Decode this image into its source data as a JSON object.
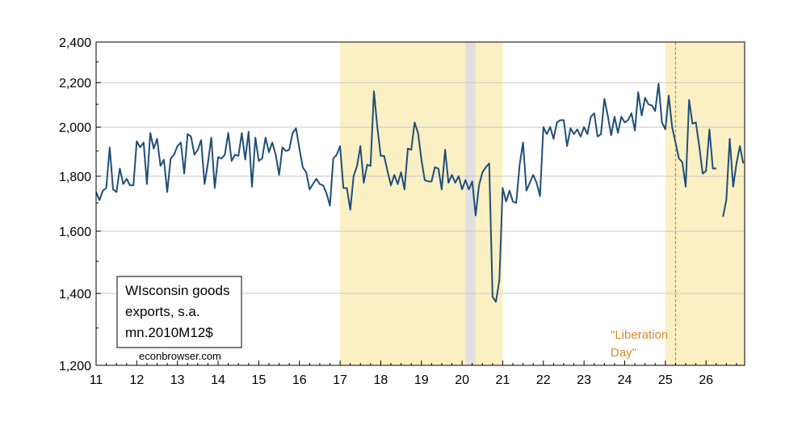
{
  "chart_data": {
    "type": "line",
    "title": "",
    "xlabel": "",
    "ylabel": "",
    "y_scale": "log",
    "ylim": [
      1200,
      2400
    ],
    "xlim": [
      2011.0,
      2026.95
    ],
    "y_ticks": [
      1200,
      1400,
      1600,
      1800,
      2000,
      2200,
      2400
    ],
    "y_tick_labels": [
      "1,200",
      "1,400",
      "1,600",
      "1,800",
      "2,000",
      "2,200",
      "2,400"
    ],
    "x_ticks": [
      2011,
      2012,
      2013,
      2014,
      2015,
      2016,
      2017,
      2018,
      2019,
      2020,
      2021,
      2022,
      2023,
      2024,
      2025,
      2026
    ],
    "x_tick_labels": [
      "11",
      "12",
      "13",
      "14",
      "15",
      "16",
      "17",
      "18",
      "19",
      "20",
      "21",
      "22",
      "23",
      "24",
      "25",
      "26"
    ],
    "grid": true,
    "legend": {
      "placement": "bottom-left",
      "lines": [
        "WIsconsin goods",
        "exports, s.a.",
        "mn.2010M12$"
      ]
    },
    "credit": "econbrowser.com",
    "shaded_periods": [
      {
        "start": 2017.0,
        "end": 2021.0,
        "color": "#fbf0c3"
      },
      {
        "start": 2020.083,
        "end": 2020.333,
        "color": "#e0e0e0"
      },
      {
        "start": 2025.0,
        "end": 2026.95,
        "color": "#fbf0c3"
      }
    ],
    "vline": {
      "x": 2025.25,
      "color": "#d98a2b"
    },
    "annotation": {
      "lines": [
        "\"Liberation",
        "Day\""
      ],
      "color": "#d98a2b"
    },
    "series": [
      {
        "color": "#1f4e79",
        "points": [
          [
            2011.0,
            1740
          ],
          [
            2011.083,
            1710
          ],
          [
            2011.167,
            1745
          ],
          [
            2011.25,
            1755
          ],
          [
            2011.333,
            1915
          ],
          [
            2011.417,
            1750
          ],
          [
            2011.5,
            1740
          ],
          [
            2011.583,
            1830
          ],
          [
            2011.667,
            1770
          ],
          [
            2011.75,
            1790
          ],
          [
            2011.833,
            1765
          ],
          [
            2011.917,
            1765
          ],
          [
            2012.0,
            1940
          ],
          [
            2012.083,
            1915
          ],
          [
            2012.167,
            1935
          ],
          [
            2012.25,
            1770
          ],
          [
            2012.333,
            1975
          ],
          [
            2012.417,
            1910
          ],
          [
            2012.5,
            1950
          ],
          [
            2012.583,
            1840
          ],
          [
            2012.667,
            1865
          ],
          [
            2012.75,
            1740
          ],
          [
            2012.833,
            1870
          ],
          [
            2012.917,
            1885
          ],
          [
            2013.0,
            1920
          ],
          [
            2013.083,
            1935
          ],
          [
            2013.167,
            1810
          ],
          [
            2013.25,
            1970
          ],
          [
            2013.333,
            1960
          ],
          [
            2013.417,
            1885
          ],
          [
            2013.5,
            1905
          ],
          [
            2013.583,
            1945
          ],
          [
            2013.667,
            1770
          ],
          [
            2013.75,
            1850
          ],
          [
            2013.833,
            1955
          ],
          [
            2013.917,
            1755
          ],
          [
            2014.0,
            1875
          ],
          [
            2014.083,
            1870
          ],
          [
            2014.167,
            1885
          ],
          [
            2014.25,
            1975
          ],
          [
            2014.333,
            1860
          ],
          [
            2014.417,
            1885
          ],
          [
            2014.5,
            1880
          ],
          [
            2014.583,
            1975
          ],
          [
            2014.667,
            1865
          ],
          [
            2014.75,
            1980
          ],
          [
            2014.833,
            1760
          ],
          [
            2014.917,
            1955
          ],
          [
            2015.0,
            1860
          ],
          [
            2015.083,
            1870
          ],
          [
            2015.167,
            1955
          ],
          [
            2015.25,
            1895
          ],
          [
            2015.333,
            1935
          ],
          [
            2015.417,
            1885
          ],
          [
            2015.5,
            1805
          ],
          [
            2015.583,
            1915
          ],
          [
            2015.667,
            1900
          ],
          [
            2015.75,
            1905
          ],
          [
            2015.833,
            1975
          ],
          [
            2015.917,
            1995
          ],
          [
            2016.0,
            1910
          ],
          [
            2016.083,
            1835
          ],
          [
            2016.167,
            1815
          ],
          [
            2016.25,
            1750
          ],
          [
            2016.333,
            1770
          ],
          [
            2016.417,
            1790
          ],
          [
            2016.5,
            1770
          ],
          [
            2016.583,
            1765
          ],
          [
            2016.667,
            1735
          ],
          [
            2016.75,
            1690
          ],
          [
            2016.833,
            1870
          ],
          [
            2016.917,
            1885
          ],
          [
            2017.0,
            1920
          ],
          [
            2017.083,
            1755
          ],
          [
            2017.167,
            1755
          ],
          [
            2017.25,
            1675
          ],
          [
            2017.333,
            1800
          ],
          [
            2017.417,
            1840
          ],
          [
            2017.5,
            1920
          ],
          [
            2017.583,
            1775
          ],
          [
            2017.667,
            1845
          ],
          [
            2017.75,
            1840
          ],
          [
            2017.833,
            2160
          ],
          [
            2017.917,
            2000
          ],
          [
            2018.0,
            1880
          ],
          [
            2018.083,
            1880
          ],
          [
            2018.167,
            1820
          ],
          [
            2018.25,
            1765
          ],
          [
            2018.333,
            1805
          ],
          [
            2018.417,
            1770
          ],
          [
            2018.5,
            1815
          ],
          [
            2018.583,
            1750
          ],
          [
            2018.667,
            1910
          ],
          [
            2018.75,
            1905
          ],
          [
            2018.833,
            2020
          ],
          [
            2018.917,
            1975
          ],
          [
            2019.0,
            1865
          ],
          [
            2019.083,
            1785
          ],
          [
            2019.167,
            1780
          ],
          [
            2019.25,
            1780
          ],
          [
            2019.333,
            1835
          ],
          [
            2019.417,
            1830
          ],
          [
            2019.5,
            1750
          ],
          [
            2019.583,
            1905
          ],
          [
            2019.667,
            1775
          ],
          [
            2019.75,
            1805
          ],
          [
            2019.833,
            1775
          ],
          [
            2019.917,
            1800
          ],
          [
            2020.0,
            1750
          ],
          [
            2020.083,
            1785
          ],
          [
            2020.167,
            1750
          ],
          [
            2020.25,
            1780
          ],
          [
            2020.333,
            1655
          ],
          [
            2020.417,
            1765
          ],
          [
            2020.5,
            1815
          ],
          [
            2020.583,
            1835
          ],
          [
            2020.667,
            1850
          ],
          [
            2020.75,
            1390
          ],
          [
            2020.833,
            1375
          ],
          [
            2020.917,
            1440
          ],
          [
            2021.0,
            1755
          ],
          [
            2021.083,
            1705
          ],
          [
            2021.167,
            1745
          ],
          [
            2021.25,
            1705
          ],
          [
            2021.333,
            1700
          ],
          [
            2021.417,
            1845
          ],
          [
            2021.5,
            1935
          ],
          [
            2021.583,
            1745
          ],
          [
            2021.667,
            1775
          ],
          [
            2021.75,
            1805
          ],
          [
            2021.833,
            1775
          ],
          [
            2021.917,
            1725
          ],
          [
            2022.0,
            2000
          ],
          [
            2022.083,
            1970
          ],
          [
            2022.167,
            2000
          ],
          [
            2022.25,
            1950
          ],
          [
            2022.333,
            2020
          ],
          [
            2022.417,
            2030
          ],
          [
            2022.5,
            2030
          ],
          [
            2022.583,
            1920
          ],
          [
            2022.667,
            1995
          ],
          [
            2022.75,
            1970
          ],
          [
            2022.833,
            1990
          ],
          [
            2022.917,
            1960
          ],
          [
            2023.0,
            2000
          ],
          [
            2023.083,
            1970
          ],
          [
            2023.167,
            2045
          ],
          [
            2023.25,
            2060
          ],
          [
            2023.333,
            1960
          ],
          [
            2023.417,
            1970
          ],
          [
            2023.5,
            2125
          ],
          [
            2023.583,
            2050
          ],
          [
            2023.667,
            1965
          ],
          [
            2023.75,
            2045
          ],
          [
            2023.833,
            1975
          ],
          [
            2023.917,
            2045
          ],
          [
            2024.0,
            2020
          ],
          [
            2024.083,
            2030
          ],
          [
            2024.167,
            2060
          ],
          [
            2024.25,
            1985
          ],
          [
            2024.333,
            2155
          ],
          [
            2024.417,
            2050
          ],
          [
            2024.5,
            2130
          ],
          [
            2024.583,
            2100
          ],
          [
            2024.667,
            2095
          ],
          [
            2024.75,
            2070
          ],
          [
            2024.833,
            2195
          ],
          [
            2024.917,
            2020
          ],
          [
            2025.0,
            1990
          ],
          [
            2025.083,
            2140
          ],
          [
            2025.167,
            2000
          ],
          [
            2025.25,
            1935
          ],
          [
            2025.333,
            1870
          ],
          [
            2025.417,
            1855
          ],
          [
            2025.5,
            1760
          ],
          [
            2025.583,
            2120
          ],
          [
            2025.667,
            2015
          ],
          [
            2025.75,
            2020
          ],
          [
            2025.833,
            1920
          ],
          [
            2025.917,
            1810
          ],
          [
            2026.0,
            1820
          ],
          [
            2026.083,
            1990
          ],
          [
            2026.167,
            1830
          ],
          [
            2026.25,
            1830
          ],
          null,
          [
            2026.417,
            1650
          ],
          [
            2026.5,
            1710
          ],
          [
            2026.583,
            1950
          ],
          [
            2026.667,
            1760
          ],
          [
            2026.75,
            1850
          ],
          [
            2026.833,
            1920
          ],
          [
            2026.917,
            1850
          ],
          [
            2027.0,
            1740
          ],
          [
            2027.083,
            1850
          ]
        ]
      }
    ]
  }
}
